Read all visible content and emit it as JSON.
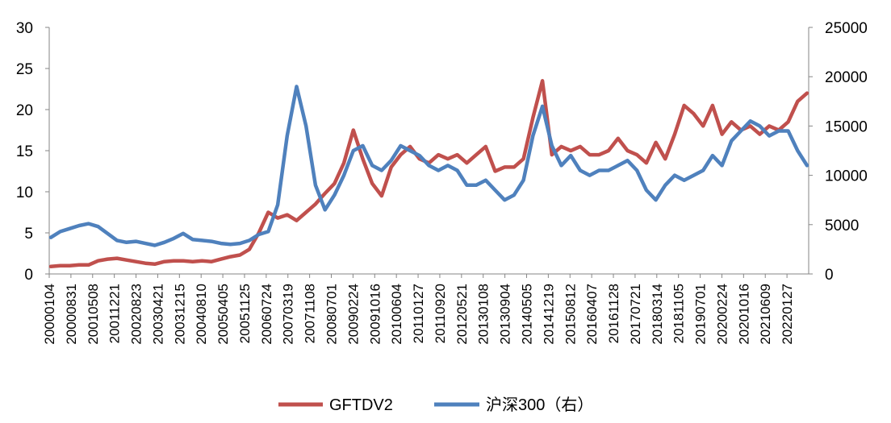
{
  "chart_data": {
    "type": "line",
    "title": "",
    "xlabel": "",
    "ylabel_left": "",
    "ylabel_right": "",
    "grid": false,
    "legend_position": "bottom",
    "left_axis": {
      "range": [
        0,
        30
      ],
      "ticks": [
        "0",
        "5",
        "10",
        "15",
        "20",
        "25",
        "30"
      ]
    },
    "right_axis": {
      "range": [
        0,
        25000
      ],
      "ticks": [
        "0",
        "5000",
        "10000",
        "15000",
        "20000",
        "25000"
      ]
    },
    "x_tick_labels": [
      "20000104",
      "20000831",
      "20010508",
      "20011221",
      "20020823",
      "20030421",
      "20031215",
      "20040810",
      "20050405",
      "20051125",
      "20060724",
      "20070319",
      "20071108",
      "20080701",
      "20090224",
      "20091016",
      "20100604",
      "20110127",
      "20110920",
      "20120521",
      "20130108",
      "20130904",
      "20140505",
      "20141219",
      "20150812",
      "20160407",
      "20161128",
      "20170721",
      "20180314",
      "20181105",
      "20190701",
      "20200224",
      "20201016",
      "20210609",
      "20220127"
    ],
    "series": [
      {
        "name": "GFTDV2",
        "axis": "left",
        "color": "#C0504D",
        "values": [
          0.9,
          1.0,
          1.0,
          1.1,
          1.1,
          1.6,
          1.8,
          1.9,
          1.7,
          1.5,
          1.3,
          1.2,
          1.5,
          1.6,
          1.6,
          1.5,
          1.6,
          1.5,
          1.8,
          2.1,
          2.3,
          3.0,
          5.0,
          7.5,
          6.8,
          7.2,
          6.5,
          7.5,
          8.5,
          9.8,
          11.0,
          13.5,
          17.5,
          14.0,
          11.0,
          9.5,
          13.0,
          14.5,
          15.5,
          14.0,
          13.5,
          14.5,
          14.0,
          14.5,
          13.5,
          14.5,
          15.5,
          12.5,
          13.0,
          13.0,
          14.0,
          19.0,
          23.5,
          14.5,
          15.5,
          15.0,
          15.5,
          14.5,
          14.5,
          15.0,
          16.5,
          15.0,
          14.5,
          13.5,
          16.0,
          14.0,
          17.0,
          20.5,
          19.5,
          18.0,
          20.5,
          17.0,
          18.5,
          17.5,
          18.0,
          17.0,
          18.0,
          17.5,
          18.5,
          21.0,
          22.0
        ]
      },
      {
        "name": "沪深300（右）",
        "axis": "right",
        "color": "#4F81BD",
        "values": [
          3700,
          4300,
          4600,
          4900,
          5100,
          4800,
          4100,
          3400,
          3200,
          3300,
          3100,
          2900,
          3200,
          3600,
          4100,
          3500,
          3400,
          3300,
          3100,
          3000,
          3100,
          3400,
          4000,
          4300,
          7000,
          14000,
          19000,
          15000,
          9000,
          6500,
          8000,
          10000,
          12500,
          13000,
          11000,
          10500,
          11500,
          13000,
          12500,
          12000,
          11000,
          10500,
          11000,
          10500,
          9000,
          9000,
          9500,
          8500,
          7500,
          8000,
          9500,
          14000,
          17000,
          13000,
          11000,
          12000,
          10500,
          10000,
          10500,
          10500,
          11000,
          11500,
          10500,
          8500,
          7500,
          9000,
          10000,
          9500,
          10000,
          10500,
          12000,
          11000,
          13500,
          14500,
          15500,
          15000,
          14000,
          14500,
          14500,
          12500,
          11000
        ]
      }
    ]
  },
  "legend": {
    "items": [
      {
        "label": "GFTDV2",
        "color": "#C0504D"
      },
      {
        "label": "沪深300（右）",
        "color": "#4F81BD"
      }
    ]
  }
}
